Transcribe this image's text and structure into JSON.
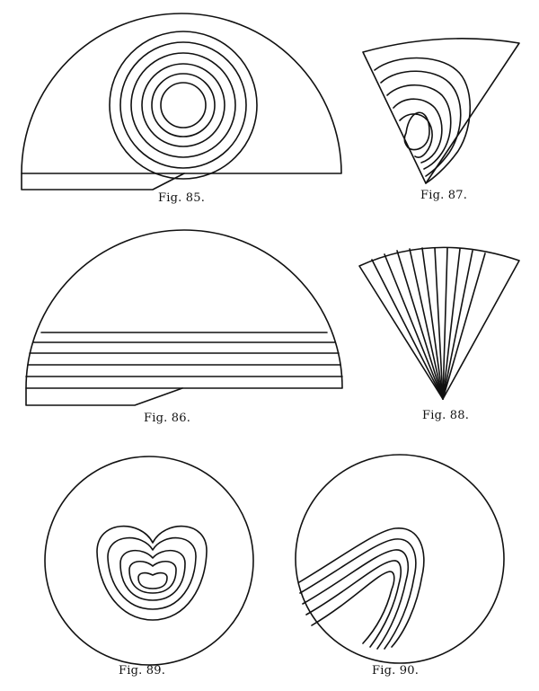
{
  "figures": [
    {
      "id": "fig85",
      "caption": "Fig. 85."
    },
    {
      "id": "fig86",
      "caption": "Fig. 86."
    },
    {
      "id": "fig87",
      "caption": "Fig. 87."
    },
    {
      "id": "fig88",
      "caption": "Fig. 88."
    },
    {
      "id": "fig89",
      "caption": "Fig. 89."
    },
    {
      "id": "fig90",
      "caption": "Fig. 90."
    }
  ],
  "colors": {
    "ink": "#111111",
    "paper": "#ffffff"
  }
}
